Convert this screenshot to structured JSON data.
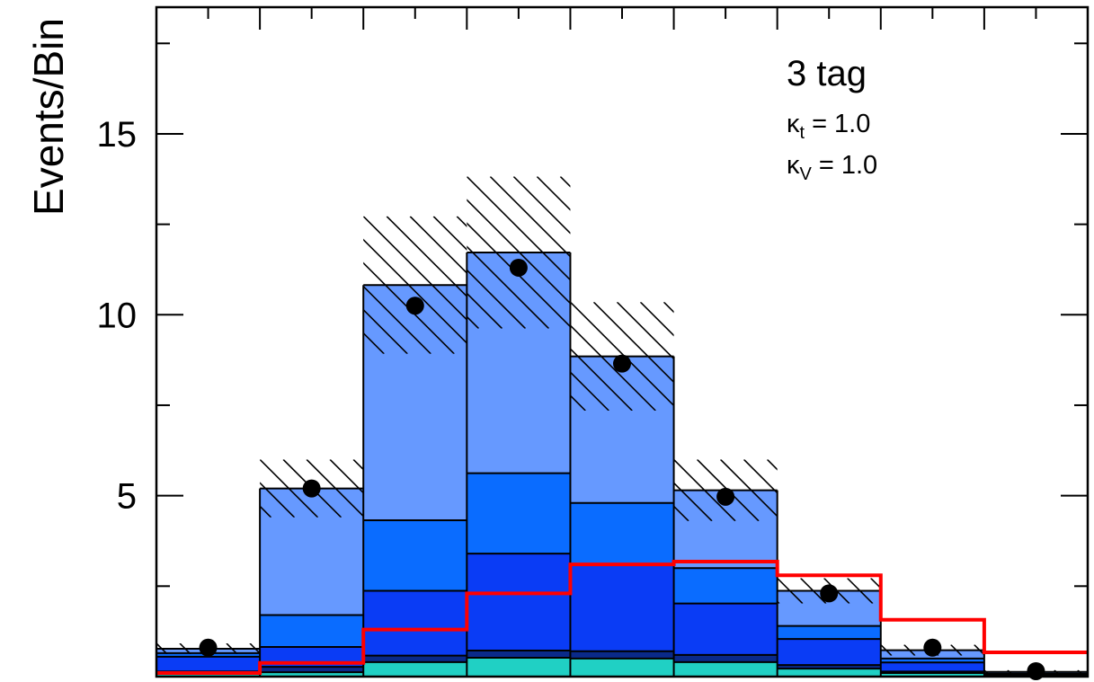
{
  "chart_data": {
    "type": "bar",
    "stacked": true,
    "ylabel": "Events/Bin",
    "xlabel": "",
    "ylim": [
      0,
      18.5
    ],
    "yticks_major": [
      5,
      10,
      15
    ],
    "yticks_minor": [
      2.5,
      7.5,
      12.5,
      17.5
    ],
    "nbins": 9,
    "bin_index": [
      1,
      2,
      3,
      4,
      5,
      6,
      7,
      8,
      9
    ],
    "series": [
      {
        "values": [
          0.08,
          0.12,
          0.4,
          0.52,
          0.5,
          0.4,
          0.22,
          0.1,
          0.03
        ],
        "color": "#20d0c4"
      },
      {
        "values": [
          0.06,
          0.15,
          0.18,
          0.2,
          0.2,
          0.2,
          0.1,
          0.04,
          0.01
        ],
        "color": "#0a2a8a"
      },
      {
        "values": [
          0.41,
          0.55,
          1.79,
          2.68,
          2.38,
          1.42,
          0.72,
          0.25,
          0.03
        ],
        "color": "#0a3cf5"
      },
      {
        "values": [
          0.1,
          0.88,
          1.95,
          2.22,
          1.72,
          0.98,
          0.36,
          0.11,
          0.01
        ],
        "color": "#0a6cff"
      },
      {
        "values": [
          0.12,
          3.5,
          6.5,
          6.1,
          4.05,
          2.15,
          0.97,
          0.23,
          0.05
        ],
        "color": "#6699ff"
      }
    ],
    "total": [
      0.77,
      5.2,
      10.82,
      11.72,
      8.85,
      5.15,
      2.37,
      0.73,
      0.13
    ],
    "uncertainty": [
      0.15,
      0.8,
      1.9,
      2.1,
      1.5,
      0.85,
      0.35,
      0.15,
      0.05
    ],
    "data_points": [
      0.8,
      5.2,
      10.25,
      11.3,
      8.65,
      4.97,
      2.3,
      0.8,
      0.15
    ],
    "signal_overlay": {
      "values": [
        0.1,
        0.38,
        1.3,
        2.3,
        3.1,
        3.18,
        2.8,
        1.57,
        0.67
      ],
      "color": "#ff0000"
    },
    "annotation": {
      "text": "3 tag",
      "kt_symbol": "κ",
      "kt_sub": "t",
      "kt_value": "= 1.0",
      "kv_symbol": "κ",
      "kv_sub": "V",
      "kv_value": "= 1.0"
    },
    "grid": false
  }
}
